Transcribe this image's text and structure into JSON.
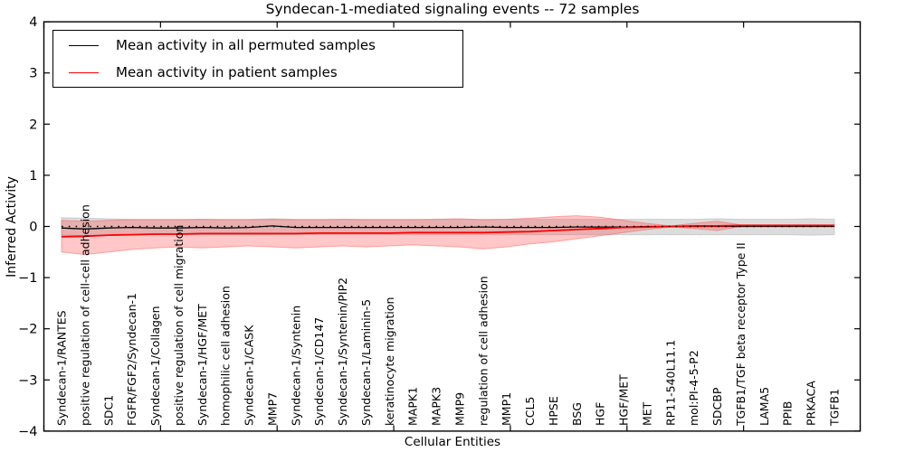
{
  "title": "Syndecan-1-mediated signaling events -- 72 samples",
  "legend": {
    "permuted_label": "Mean activity in all permuted samples",
    "patient_label": "Mean activity in patient samples"
  },
  "axes": {
    "xlabel": "Cellular Entities",
    "ylabel": "Inferred Activity",
    "ylim": [
      -4,
      4
    ],
    "y_tick_labels": [
      "4",
      "3",
      "2",
      "1",
      "0",
      "−1",
      "−2",
      "−3",
      "−4"
    ],
    "y_tick_values": [
      4,
      3,
      2,
      1,
      0,
      -1,
      -2,
      -3,
      -4
    ],
    "x_major_tick_count": 8,
    "grid": "off",
    "legend_position": "upper-left"
  },
  "colors": {
    "permuted_line": "#000000",
    "patient_line": "#ff0000",
    "permuted_band": "#c9c9c9",
    "patient_band": "#f07070",
    "zero_reference": "#000000",
    "axis": "#000000"
  },
  "chart_data": {
    "type": "line",
    "title": "Syndecan-1-mediated signaling events -- 72 samples",
    "xlabel": "Cellular Entities",
    "ylabel": "Inferred Activity",
    "ylim": [
      -4,
      4
    ],
    "categories": [
      "Syndecan-1/RANTES",
      "positive regulation of cell-cell adhesion",
      "SDC1",
      "FGFR/FGF2/Syndecan-1",
      "Syndecan-1/Collagen",
      "positive regulation of cell migration",
      "Syndecan-1/HGF/MET",
      "homophilic cell adhesion",
      "Syndecan-1/CASK",
      "MMP7",
      "Syndecan-1/Syntenin",
      "Syndecan-1/CD147",
      "Syndecan-1/Syntenin/PIP2",
      "Syndecan-1/Laminin-5",
      "keratinocyte migration",
      "MAPK1",
      "MAPK3",
      "MMP9",
      "regulation of cell adhesion",
      "MMP1",
      "CCL5",
      "HPSE",
      "BSG",
      "HGF",
      "HGF/MET",
      "MET",
      "RP11-540L11.1",
      "mol:PI-4-5-P2",
      "SDCBP",
      "TGFB1/TGF beta receptor Type II",
      "LAMA5",
      "PPIB",
      "PRKACA",
      "TGFB1"
    ],
    "bands": [
      {
        "name": "permuted-std-band",
        "color": "#bfbfbf",
        "opacity": 0.55,
        "upper": [
          0.17,
          0.16,
          0.15,
          0.14,
          0.14,
          0.14,
          0.14,
          0.14,
          0.14,
          0.15,
          0.14,
          0.14,
          0.14,
          0.14,
          0.14,
          0.14,
          0.14,
          0.14,
          0.14,
          0.14,
          0.14,
          0.14,
          0.14,
          0.14,
          0.14,
          0.14,
          0.14,
          0.14,
          0.15,
          0.14,
          0.14,
          0.14,
          0.15,
          0.14
        ],
        "lower": [
          -0.17,
          -0.18,
          -0.16,
          -0.16,
          -0.16,
          -0.16,
          -0.16,
          -0.16,
          -0.16,
          -0.16,
          -0.16,
          -0.16,
          -0.16,
          -0.16,
          -0.16,
          -0.16,
          -0.16,
          -0.16,
          -0.16,
          -0.16,
          -0.16,
          -0.16,
          -0.16,
          -0.16,
          -0.16,
          -0.16,
          -0.16,
          -0.16,
          -0.16,
          -0.16,
          -0.16,
          -0.16,
          -0.17,
          -0.16
        ]
      },
      {
        "name": "patient-std-band",
        "color": "#f55",
        "opacity": 0.33,
        "upper": [
          0.12,
          0.1,
          0.12,
          0.13,
          0.13,
          0.13,
          0.14,
          0.13,
          0.13,
          0.14,
          0.13,
          0.13,
          0.14,
          0.13,
          0.13,
          0.13,
          0.14,
          0.15,
          0.13,
          0.14,
          0.16,
          0.19,
          0.21,
          0.18,
          0.12,
          0.06,
          0.01,
          0.06,
          0.1,
          0.03,
          0.03,
          0.03,
          0.03,
          0.03
        ],
        "lower": [
          -0.5,
          -0.55,
          -0.5,
          -0.45,
          -0.42,
          -0.4,
          -0.42,
          -0.4,
          -0.38,
          -0.4,
          -0.42,
          -0.4,
          -0.38,
          -0.4,
          -0.38,
          -0.36,
          -0.38,
          -0.4,
          -0.44,
          -0.4,
          -0.34,
          -0.3,
          -0.24,
          -0.18,
          -0.12,
          -0.06,
          -0.01,
          -0.04,
          -0.08,
          0.0,
          0.01,
          0.01,
          0.01,
          0.01
        ]
      }
    ],
    "series": [
      {
        "name": "Mean activity in all permuted samples",
        "color": "#000000",
        "style": "solid",
        "width": 1.3,
        "values": [
          -0.03,
          -0.05,
          -0.03,
          -0.02,
          -0.03,
          -0.03,
          -0.02,
          -0.03,
          -0.02,
          0.01,
          -0.02,
          -0.02,
          -0.02,
          -0.02,
          -0.02,
          -0.02,
          -0.02,
          -0.02,
          -0.01,
          -0.02,
          -0.02,
          -0.02,
          -0.01,
          -0.01,
          -0.01,
          0.0,
          0.0,
          0.0,
          0.0,
          0.0,
          0.0,
          0.0,
          0.0,
          0.0
        ]
      },
      {
        "name": "Mean activity in patient samples",
        "color": "#ff0000",
        "style": "solid",
        "width": 1.8,
        "values": [
          -0.2,
          -0.19,
          -0.17,
          -0.16,
          -0.15,
          -0.15,
          -0.14,
          -0.14,
          -0.14,
          -0.14,
          -0.14,
          -0.13,
          -0.13,
          -0.13,
          -0.13,
          -0.12,
          -0.12,
          -0.12,
          -0.12,
          -0.11,
          -0.1,
          -0.08,
          -0.06,
          -0.04,
          -0.02,
          -0.01,
          0.0,
          0.01,
          0.01,
          0.02,
          0.02,
          0.02,
          0.02,
          0.02
        ]
      },
      {
        "name": "zero-reference",
        "color": "#000000",
        "style": "dotted",
        "width": 1.4,
        "values": [
          0,
          0,
          0,
          0,
          0,
          0,
          0,
          0,
          0,
          0,
          0,
          0,
          0,
          0,
          0,
          0,
          0,
          0,
          0,
          0,
          0,
          0,
          0,
          0,
          0,
          0,
          0,
          0,
          0,
          0,
          0,
          0,
          0,
          0
        ]
      }
    ]
  }
}
